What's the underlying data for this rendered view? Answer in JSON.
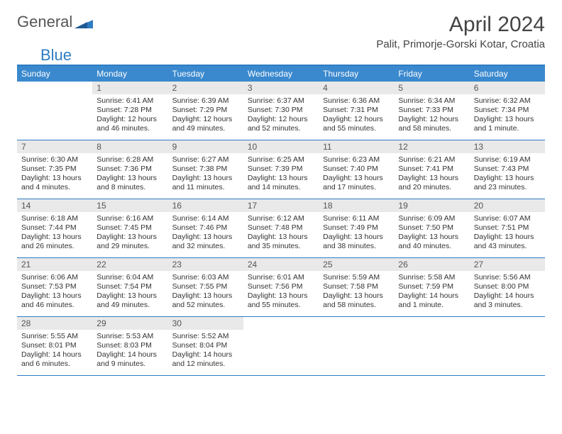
{
  "logo": {
    "text1": "General",
    "text2": "Blue"
  },
  "title": "April 2024",
  "location": "Palit, Primorje-Gorski Kotar, Croatia",
  "weekdays": [
    "Sunday",
    "Monday",
    "Tuesday",
    "Wednesday",
    "Thursday",
    "Friday",
    "Saturday"
  ],
  "colors": {
    "header_bg": "#3a89ce",
    "border": "#2e7cc2",
    "daynum_bg": "#e9e9e9",
    "text": "#333333"
  },
  "calendar": {
    "type": "table",
    "columns": 7,
    "rows": 5
  },
  "days": [
    {
      "n": "",
      "sunrise": "",
      "sunset": "",
      "daylight": ""
    },
    {
      "n": "1",
      "sunrise": "Sunrise: 6:41 AM",
      "sunset": "Sunset: 7:28 PM",
      "daylight": "Daylight: 12 hours and 46 minutes."
    },
    {
      "n": "2",
      "sunrise": "Sunrise: 6:39 AM",
      "sunset": "Sunset: 7:29 PM",
      "daylight": "Daylight: 12 hours and 49 minutes."
    },
    {
      "n": "3",
      "sunrise": "Sunrise: 6:37 AM",
      "sunset": "Sunset: 7:30 PM",
      "daylight": "Daylight: 12 hours and 52 minutes."
    },
    {
      "n": "4",
      "sunrise": "Sunrise: 6:36 AM",
      "sunset": "Sunset: 7:31 PM",
      "daylight": "Daylight: 12 hours and 55 minutes."
    },
    {
      "n": "5",
      "sunrise": "Sunrise: 6:34 AM",
      "sunset": "Sunset: 7:33 PM",
      "daylight": "Daylight: 12 hours and 58 minutes."
    },
    {
      "n": "6",
      "sunrise": "Sunrise: 6:32 AM",
      "sunset": "Sunset: 7:34 PM",
      "daylight": "Daylight: 13 hours and 1 minute."
    },
    {
      "n": "7",
      "sunrise": "Sunrise: 6:30 AM",
      "sunset": "Sunset: 7:35 PM",
      "daylight": "Daylight: 13 hours and 4 minutes."
    },
    {
      "n": "8",
      "sunrise": "Sunrise: 6:28 AM",
      "sunset": "Sunset: 7:36 PM",
      "daylight": "Daylight: 13 hours and 8 minutes."
    },
    {
      "n": "9",
      "sunrise": "Sunrise: 6:27 AM",
      "sunset": "Sunset: 7:38 PM",
      "daylight": "Daylight: 13 hours and 11 minutes."
    },
    {
      "n": "10",
      "sunrise": "Sunrise: 6:25 AM",
      "sunset": "Sunset: 7:39 PM",
      "daylight": "Daylight: 13 hours and 14 minutes."
    },
    {
      "n": "11",
      "sunrise": "Sunrise: 6:23 AM",
      "sunset": "Sunset: 7:40 PM",
      "daylight": "Daylight: 13 hours and 17 minutes."
    },
    {
      "n": "12",
      "sunrise": "Sunrise: 6:21 AM",
      "sunset": "Sunset: 7:41 PM",
      "daylight": "Daylight: 13 hours and 20 minutes."
    },
    {
      "n": "13",
      "sunrise": "Sunrise: 6:19 AM",
      "sunset": "Sunset: 7:43 PM",
      "daylight": "Daylight: 13 hours and 23 minutes."
    },
    {
      "n": "14",
      "sunrise": "Sunrise: 6:18 AM",
      "sunset": "Sunset: 7:44 PM",
      "daylight": "Daylight: 13 hours and 26 minutes."
    },
    {
      "n": "15",
      "sunrise": "Sunrise: 6:16 AM",
      "sunset": "Sunset: 7:45 PM",
      "daylight": "Daylight: 13 hours and 29 minutes."
    },
    {
      "n": "16",
      "sunrise": "Sunrise: 6:14 AM",
      "sunset": "Sunset: 7:46 PM",
      "daylight": "Daylight: 13 hours and 32 minutes."
    },
    {
      "n": "17",
      "sunrise": "Sunrise: 6:12 AM",
      "sunset": "Sunset: 7:48 PM",
      "daylight": "Daylight: 13 hours and 35 minutes."
    },
    {
      "n": "18",
      "sunrise": "Sunrise: 6:11 AM",
      "sunset": "Sunset: 7:49 PM",
      "daylight": "Daylight: 13 hours and 38 minutes."
    },
    {
      "n": "19",
      "sunrise": "Sunrise: 6:09 AM",
      "sunset": "Sunset: 7:50 PM",
      "daylight": "Daylight: 13 hours and 40 minutes."
    },
    {
      "n": "20",
      "sunrise": "Sunrise: 6:07 AM",
      "sunset": "Sunset: 7:51 PM",
      "daylight": "Daylight: 13 hours and 43 minutes."
    },
    {
      "n": "21",
      "sunrise": "Sunrise: 6:06 AM",
      "sunset": "Sunset: 7:53 PM",
      "daylight": "Daylight: 13 hours and 46 minutes."
    },
    {
      "n": "22",
      "sunrise": "Sunrise: 6:04 AM",
      "sunset": "Sunset: 7:54 PM",
      "daylight": "Daylight: 13 hours and 49 minutes."
    },
    {
      "n": "23",
      "sunrise": "Sunrise: 6:03 AM",
      "sunset": "Sunset: 7:55 PM",
      "daylight": "Daylight: 13 hours and 52 minutes."
    },
    {
      "n": "24",
      "sunrise": "Sunrise: 6:01 AM",
      "sunset": "Sunset: 7:56 PM",
      "daylight": "Daylight: 13 hours and 55 minutes."
    },
    {
      "n": "25",
      "sunrise": "Sunrise: 5:59 AM",
      "sunset": "Sunset: 7:58 PM",
      "daylight": "Daylight: 13 hours and 58 minutes."
    },
    {
      "n": "26",
      "sunrise": "Sunrise: 5:58 AM",
      "sunset": "Sunset: 7:59 PM",
      "daylight": "Daylight: 14 hours and 1 minute."
    },
    {
      "n": "27",
      "sunrise": "Sunrise: 5:56 AM",
      "sunset": "Sunset: 8:00 PM",
      "daylight": "Daylight: 14 hours and 3 minutes."
    },
    {
      "n": "28",
      "sunrise": "Sunrise: 5:55 AM",
      "sunset": "Sunset: 8:01 PM",
      "daylight": "Daylight: 14 hours and 6 minutes."
    },
    {
      "n": "29",
      "sunrise": "Sunrise: 5:53 AM",
      "sunset": "Sunset: 8:03 PM",
      "daylight": "Daylight: 14 hours and 9 minutes."
    },
    {
      "n": "30",
      "sunrise": "Sunrise: 5:52 AM",
      "sunset": "Sunset: 8:04 PM",
      "daylight": "Daylight: 14 hours and 12 minutes."
    },
    {
      "n": "",
      "sunrise": "",
      "sunset": "",
      "daylight": ""
    },
    {
      "n": "",
      "sunrise": "",
      "sunset": "",
      "daylight": ""
    },
    {
      "n": "",
      "sunrise": "",
      "sunset": "",
      "daylight": ""
    },
    {
      "n": "",
      "sunrise": "",
      "sunset": "",
      "daylight": ""
    }
  ]
}
